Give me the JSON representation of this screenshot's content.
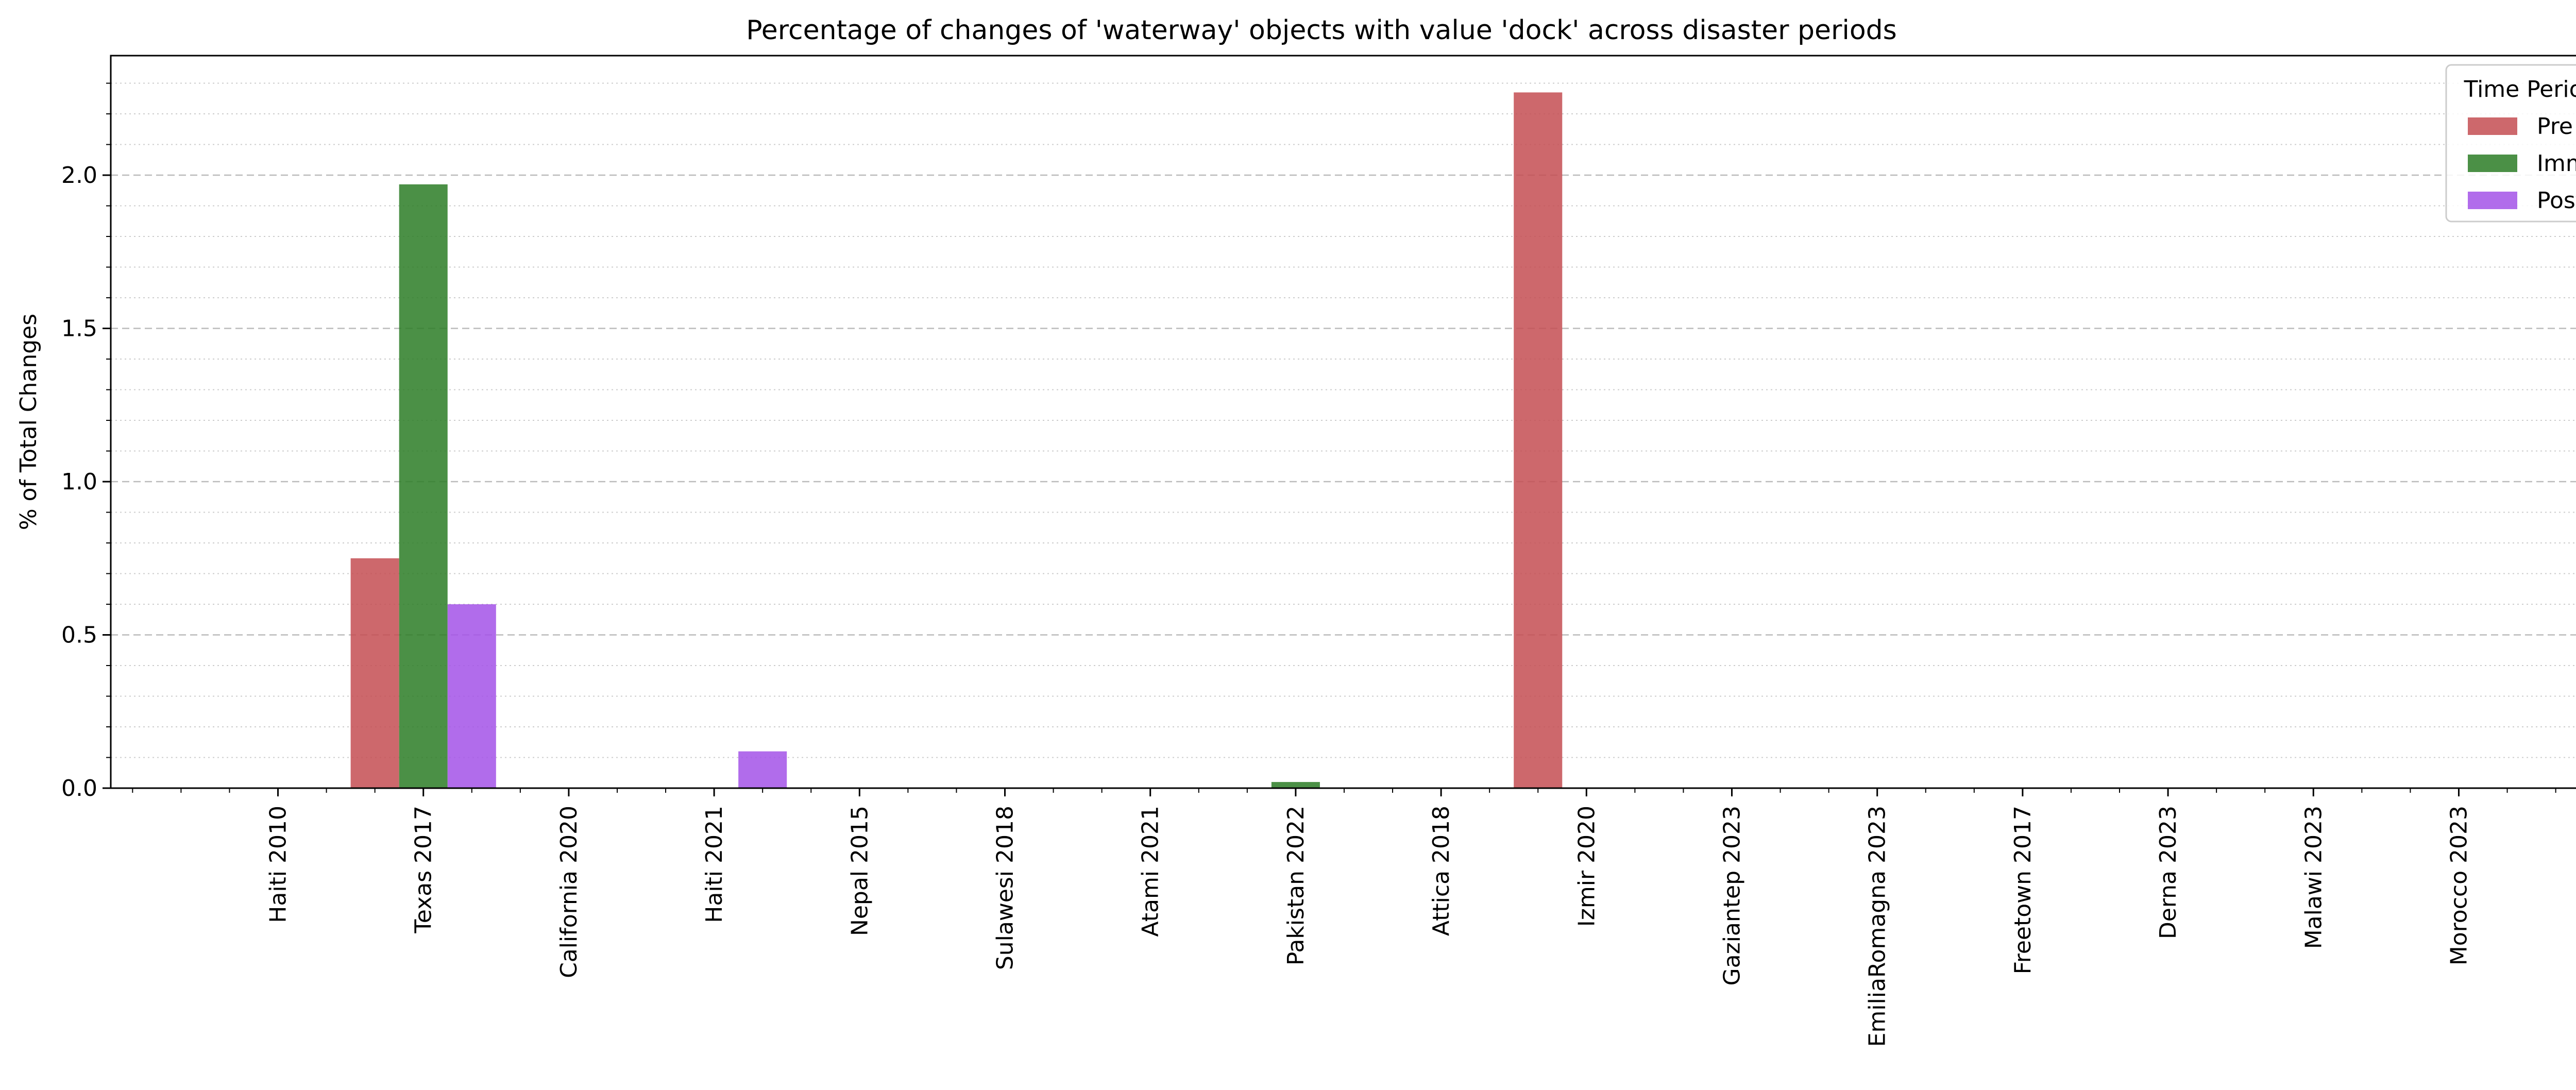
{
  "chart_data": {
    "type": "bar",
    "title": "Percentage of changes of 'waterway' objects with value 'dock' across disaster periods",
    "xlabel": "",
    "ylabel": "% of Total Changes",
    "categories": [
      "Haiti 2010",
      "Texas 2017",
      "California 2020",
      "Haiti 2021",
      "Nepal 2015",
      "Sulawesi 2018",
      "Atami 2021",
      "Pakistan 2022",
      "Attica 2018",
      "Izmir 2020",
      "Gaziantep 2023",
      "EmiliaRomagna 2023",
      "Freetown 2017",
      "Derna 2023",
      "Malawi 2023",
      "Morocco 2023"
    ],
    "series": [
      {
        "name": "Pre",
        "color": "#c44e52",
        "values": [
          0,
          0.75,
          0,
          0,
          0,
          0,
          0,
          0,
          0,
          2.27,
          0,
          0,
          0,
          0,
          0,
          0
        ]
      },
      {
        "name": "Imm",
        "color": "#2b7d26",
        "values": [
          0,
          1.97,
          0,
          0,
          0,
          0,
          0,
          0.02,
          0,
          0,
          0,
          0,
          0,
          0,
          0,
          0
        ]
      },
      {
        "name": "Post",
        "color": "#a352e8",
        "values": [
          0,
          0.6,
          0,
          0.12,
          0,
          0,
          0,
          0,
          0,
          0,
          0,
          0,
          0,
          0,
          0,
          0
        ]
      }
    ],
    "ylim": [
      0,
      2.39
    ],
    "yticks": [
      "0.0",
      "0.5",
      "1.0",
      "1.5",
      "2.0"
    ],
    "grid": "y-major dashed, y-minor dotted",
    "legend": {
      "title": "Time Period",
      "placement": "top-right"
    }
  }
}
